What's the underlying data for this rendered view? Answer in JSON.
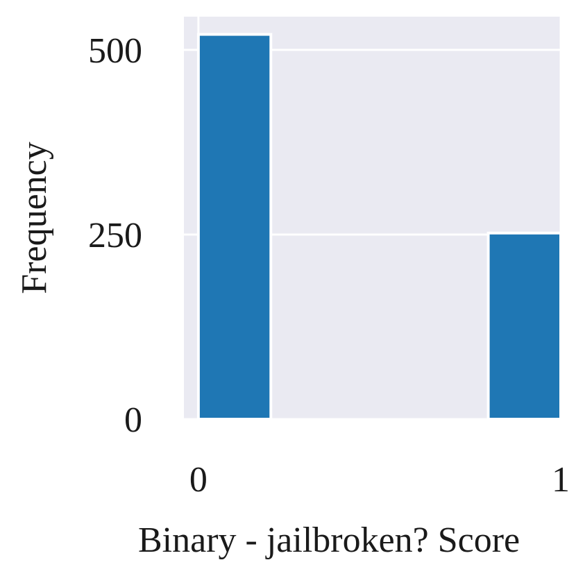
{
  "chart_data": {
    "type": "bar",
    "xlabel": "Binary - jailbroken? Score",
    "ylabel": "Frequency",
    "x_ticks": [
      "0",
      "1"
    ],
    "y_ticks": [
      "0",
      "250",
      "500"
    ],
    "bins": [
      {
        "x_start": 0.0,
        "x_end": 0.2,
        "value": 521
      },
      {
        "x_start": 0.8,
        "x_end": 1.0,
        "value": 252
      }
    ],
    "xlim": [
      -0.04,
      1.0
    ],
    "ylim": [
      0,
      545
    ],
    "grid": true,
    "colors": {
      "bar": "#1f77b4",
      "bar_edge": "#ffffff",
      "plot_background": "#eaeaf2",
      "grid": "#ffffff"
    }
  }
}
